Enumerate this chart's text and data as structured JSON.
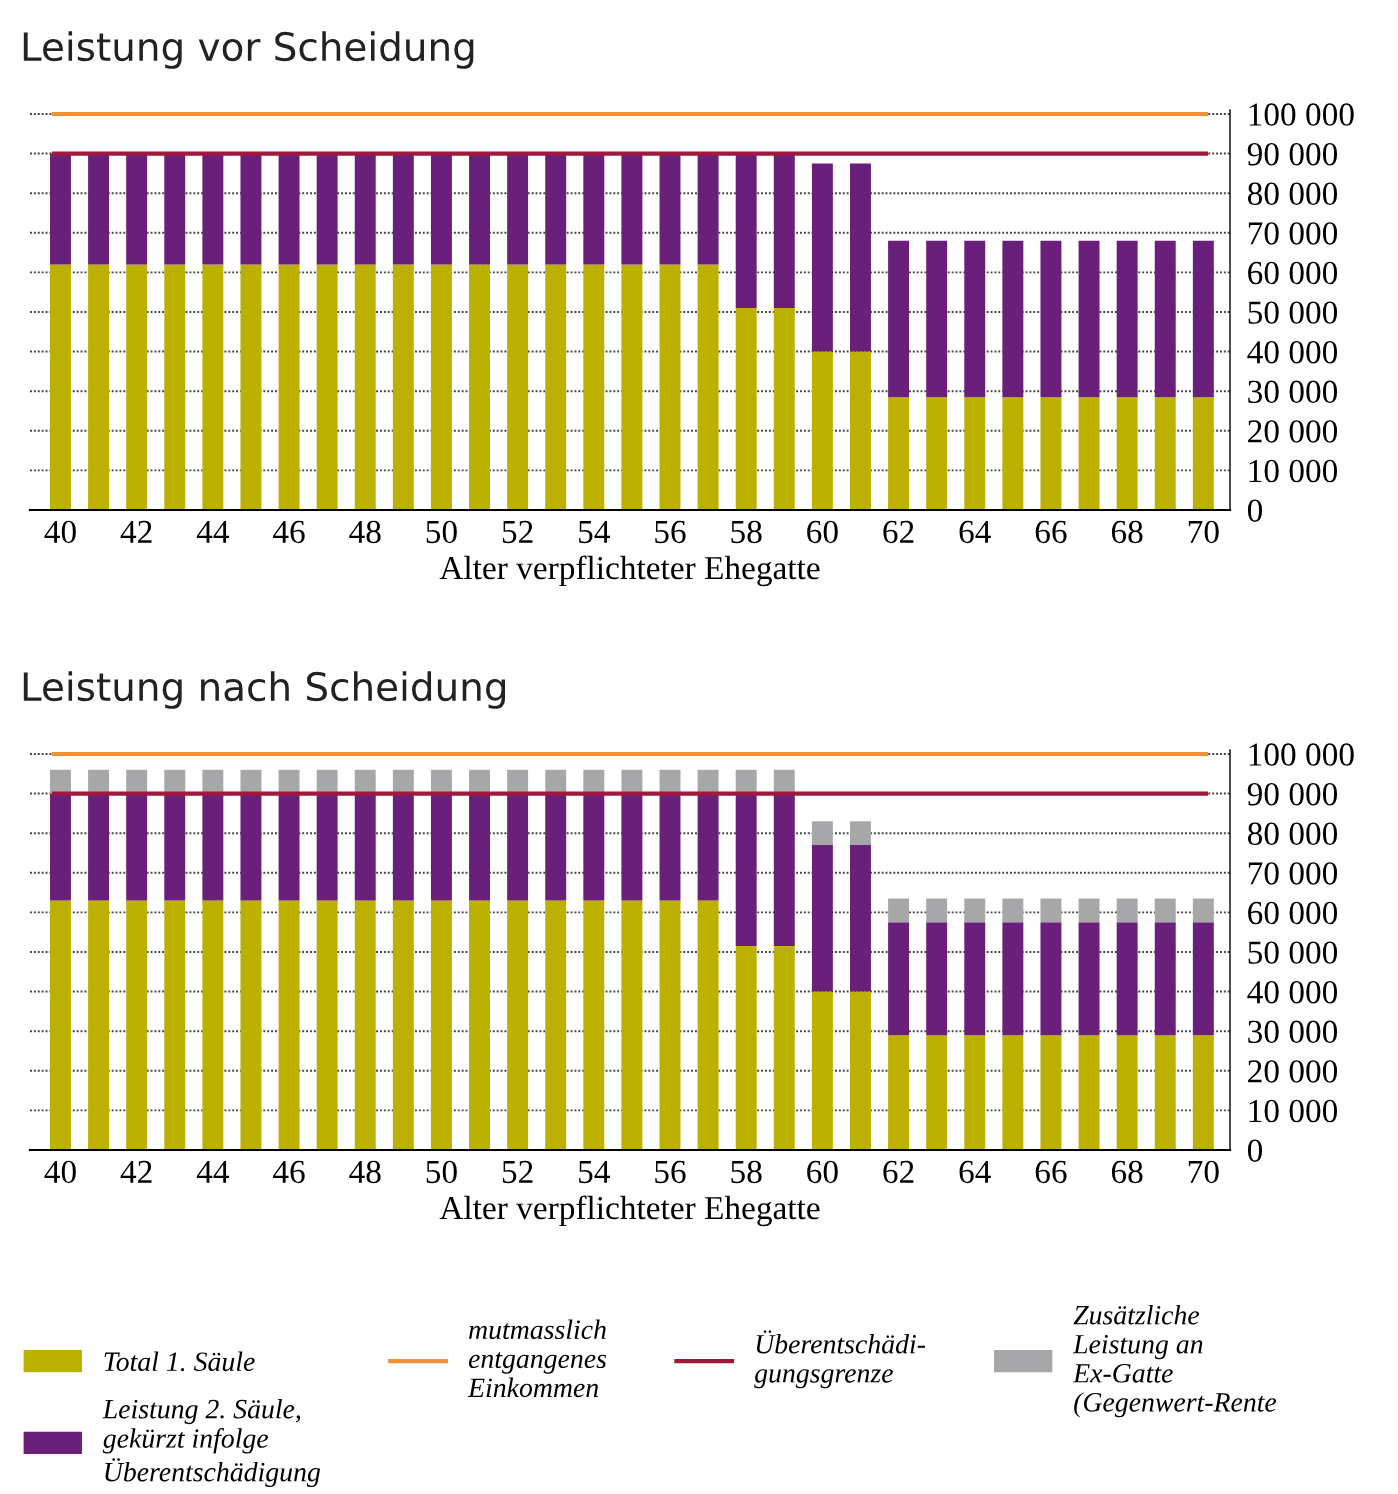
{
  "chart_data": [
    {
      "type": "bar",
      "title": "Leistung vor Scheidung",
      "xlabel": "Alter verpflichteter Ehegatte",
      "stacked": true,
      "grid": "y",
      "legend": false,
      "categories": [
        "40",
        null,
        "42",
        null,
        "44",
        null,
        "46",
        null,
        "48",
        null,
        "50",
        null,
        "52",
        null,
        "54",
        null,
        "56",
        null,
        "58",
        null,
        "60",
        null,
        "62",
        null,
        "64",
        null,
        "66",
        null,
        "68",
        null,
        "70"
      ],
      "series": [
        {
          "color": "#bcb000",
          "values": [
            62000,
            62000,
            62000,
            62000,
            62000,
            62000,
            62000,
            62000,
            62000,
            62000,
            62000,
            62000,
            62000,
            62000,
            62000,
            62000,
            62000,
            62000,
            51000,
            51000,
            40000,
            40000,
            28500,
            28500,
            28500,
            28500,
            28500,
            28500,
            28500,
            28500,
            28500
          ]
        },
        {
          "color": "#6a1f7a",
          "values": [
            28000,
            28000,
            28000,
            28000,
            28000,
            28000,
            28000,
            28000,
            28000,
            28000,
            28000,
            28000,
            28000,
            28000,
            28000,
            28000,
            28000,
            28000,
            39000,
            39000,
            47500,
            47500,
            39500,
            39500,
            39500,
            39500,
            39500,
            39500,
            39500,
            39500,
            39500
          ]
        }
      ],
      "ref_lines": [
        {
          "axis": "y",
          "value": 100000,
          "color": "#f0913a"
        },
        {
          "axis": "y",
          "value": 90000,
          "color": "#a0183c"
        }
      ],
      "ylim": [
        0,
        101000
      ],
      "yticks": [
        0,
        {
          "value": 10000,
          "label": "10 000"
        },
        {
          "value": 20000,
          "label": "20 000"
        },
        {
          "value": 30000,
          "label": "30 000"
        },
        {
          "value": 40000,
          "label": "40 000"
        },
        {
          "value": 50000,
          "label": "50 000"
        },
        {
          "value": 60000,
          "label": "60 000"
        },
        {
          "value": 70000,
          "label": "70 000"
        },
        {
          "value": 80000,
          "label": "80 000"
        },
        {
          "value": 90000,
          "label": "90 000"
        },
        {
          "value": 100000,
          "label": "100 000"
        }
      ]
    },
    {
      "type": "bar",
      "title": "Leistung nach Scheidung",
      "xlabel": "Alter verpflichteter Ehegatte",
      "stacked": true,
      "grid": "y",
      "legend": "bottom",
      "categories": [
        "40",
        null,
        "42",
        null,
        "44",
        null,
        "46",
        null,
        "48",
        null,
        "50",
        null,
        "52",
        null,
        "54",
        null,
        "56",
        null,
        "58",
        null,
        "60",
        null,
        "62",
        null,
        "64",
        null,
        "66",
        null,
        "68",
        null,
        "70"
      ],
      "series": [
        {
          "name": "Total 1. Säule",
          "color": "#bcb000",
          "values": [
            63000,
            63000,
            63000,
            63000,
            63000,
            63000,
            63000,
            63000,
            63000,
            63000,
            63000,
            63000,
            63000,
            63000,
            63000,
            63000,
            63000,
            63000,
            51500,
            51500,
            40000,
            40000,
            29000,
            29000,
            29000,
            29000,
            29000,
            29000,
            29000,
            29000,
            29000
          ]
        },
        {
          "name": "Leistung 2. Säule,\ngekürzt infolge\nÜberentschädigung",
          "color": "#6a1f7a",
          "values": [
            27000,
            27000,
            27000,
            27000,
            27000,
            27000,
            27000,
            27000,
            27000,
            27000,
            27000,
            27000,
            27000,
            27000,
            27000,
            27000,
            27000,
            27000,
            38500,
            38500,
            37000,
            37000,
            28500,
            28500,
            28500,
            28500,
            28500,
            28500,
            28500,
            28500,
            28500
          ]
        },
        {
          "name": "Zusätzliche\nLeistung an\nEx-Gatte\n(Gegenwert-Rente",
          "color": "#a7a7aa",
          "values": [
            6000,
            6000,
            6000,
            6000,
            6000,
            6000,
            6000,
            6000,
            6000,
            6000,
            6000,
            6000,
            6000,
            6000,
            6000,
            6000,
            6000,
            6000,
            6000,
            6000,
            6000,
            6000,
            6000,
            6000,
            6000,
            6000,
            6000,
            6000,
            6000,
            6000,
            6000
          ]
        }
      ],
      "ref_lines": [
        {
          "axis": "y",
          "value": 100000,
          "label": "mutmasslich\nentgangenes\nEinkommen",
          "color": "#f0913a"
        },
        {
          "axis": "y",
          "value": 90000,
          "label": "Überentschädi-\ngungsgrenze",
          "color": "#a0183c"
        }
      ],
      "ylim": [
        0,
        101000
      ],
      "yticks": [
        0,
        {
          "value": 10000,
          "label": "10 000"
        },
        {
          "value": 20000,
          "label": "20 000"
        },
        {
          "value": 30000,
          "label": "30 000"
        },
        {
          "value": 40000,
          "label": "40 000"
        },
        {
          "value": 50000,
          "label": "50 000"
        },
        {
          "value": 60000,
          "label": "60 000"
        },
        {
          "value": 70000,
          "label": "70 000"
        },
        {
          "value": 80000,
          "label": "80 000"
        },
        {
          "value": 90000,
          "label": "90 000"
        },
        {
          "value": 100000,
          "label": "100 000"
        }
      ]
    }
  ]
}
